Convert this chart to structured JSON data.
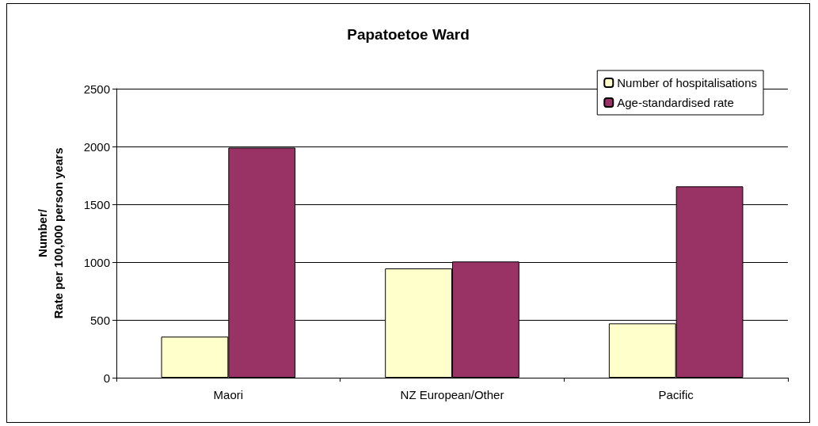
{
  "chart_data": {
    "type": "bar",
    "title": "Papatoetoe Ward",
    "ylabel": "Number/\nRate per 100,000 person years",
    "categories": [
      "Maori",
      "NZ European/Other",
      "Pacific"
    ],
    "series": [
      {
        "name": "Number of hospitalisations",
        "color": "#ffffcc",
        "values": [
          355,
          945,
          470
        ]
      },
      {
        "name": "Age-standardised rate",
        "color": "#993366",
        "values": [
          1990,
          1005,
          1655
        ]
      }
    ],
    "ylim": [
      0,
      2500
    ],
    "yticks": [
      0,
      500,
      1000,
      1500,
      2000,
      2500
    ],
    "grid": "y",
    "legend": "top right"
  }
}
